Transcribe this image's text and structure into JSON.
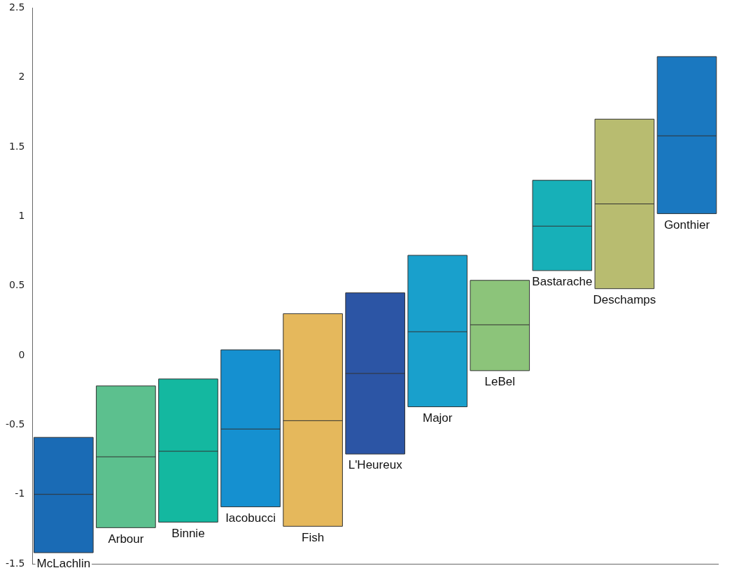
{
  "chart_data": {
    "type": "box",
    "categories": [
      "McLachlin",
      "Arbour",
      "Binnie",
      "Iacobucci",
      "Fish",
      "L'Heureux",
      "Major",
      "LeBel",
      "Bastarache",
      "Deschamps",
      "Gonthier"
    ],
    "boxes": [
      {
        "low": -1.42,
        "q1": -1.42,
        "median": -1.0,
        "q3": -0.59,
        "high": -0.59
      },
      {
        "low": -1.24,
        "q1": -1.24,
        "median": -0.73,
        "q3": -0.22,
        "high": -0.22
      },
      {
        "low": -1.2,
        "q1": -1.2,
        "median": -0.69,
        "q3": -0.17,
        "high": -0.17
      },
      {
        "low": -1.09,
        "q1": -1.09,
        "median": -0.53,
        "q3": 0.04,
        "high": 0.04
      },
      {
        "low": -1.23,
        "q1": -1.23,
        "median": -0.47,
        "q3": 0.3,
        "high": 0.3
      },
      {
        "low": -0.71,
        "q1": -0.71,
        "median": -0.13,
        "q3": 0.45,
        "high": 0.45
      },
      {
        "low": -0.37,
        "q1": -0.37,
        "median": 0.17,
        "q3": 0.72,
        "high": 0.72
      },
      {
        "low": -0.11,
        "q1": -0.11,
        "median": 0.22,
        "q3": 0.54,
        "high": 0.54
      },
      {
        "low": 0.61,
        "q1": 0.61,
        "median": 0.93,
        "q3": 1.26,
        "high": 1.26
      },
      {
        "low": 0.48,
        "q1": 0.48,
        "median": 1.09,
        "q3": 1.7,
        "high": 1.7
      },
      {
        "low": 1.02,
        "q1": 1.02,
        "median": 1.58,
        "q3": 2.15,
        "high": 2.15
      }
    ],
    "colors": [
      "#1a6bb5",
      "#5cc08e",
      "#14b8a0",
      "#1590d0",
      "#e5b85c",
      "#2c55a5",
      "#19a0cc",
      "#8cc47a",
      "#17b0b8",
      "#b8bc70",
      "#1a78c0"
    ],
    "ylim": [
      -1.5,
      2.5
    ],
    "yticks": [
      -1.5,
      -1,
      -0.5,
      0,
      0.5,
      1,
      1.5,
      2,
      2.5
    ],
    "grid": false,
    "legend": false,
    "tick_labels": "y"
  }
}
